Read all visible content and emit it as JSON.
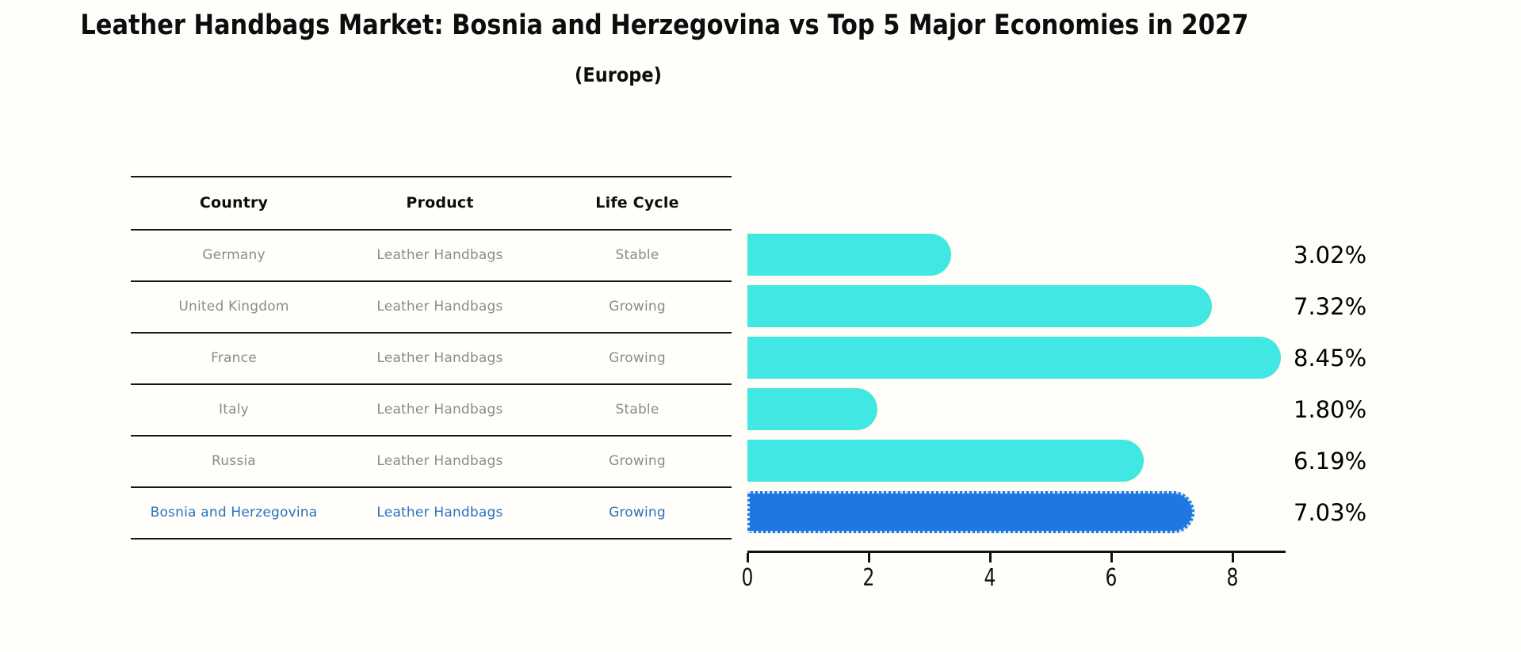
{
  "header": {
    "title": "Leather Handbags Market: Bosnia and Herzegovina vs Top 5 Major Economies in 2027",
    "subtitle": "(Europe)"
  },
  "table": {
    "columns": [
      "Country",
      "Product",
      "Life Cycle"
    ],
    "rows": [
      {
        "country": "Germany",
        "product": "Leather Handbags",
        "life_cycle": "Stable",
        "highlight": false
      },
      {
        "country": "United Kingdom",
        "product": "Leather Handbags",
        "life_cycle": "Growing",
        "highlight": false
      },
      {
        "country": "France",
        "product": "Leather Handbags",
        "life_cycle": "Growing",
        "highlight": false
      },
      {
        "country": "Italy",
        "product": "Leather Handbags",
        "life_cycle": "Stable",
        "highlight": false
      },
      {
        "country": "Russia",
        "product": "Leather Handbags",
        "life_cycle": "Growing",
        "highlight": false
      },
      {
        "country": "Bosnia and Herzegovina",
        "product": "Leather Handbags",
        "life_cycle": "Growing",
        "highlight": true
      }
    ]
  },
  "chart_data": {
    "type": "bar",
    "orientation": "horizontal",
    "title": "Leather Handbags Market: Bosnia and Herzegovina vs Top 5 Major Economies in 2027 (Europe)",
    "categories": [
      "Germany",
      "United Kingdom",
      "France",
      "Italy",
      "Russia",
      "Bosnia and Herzegovina"
    ],
    "values": [
      3.02,
      7.32,
      8.45,
      1.8,
      6.19,
      7.03
    ],
    "value_labels": [
      "3.02%",
      "7.32%",
      "8.45%",
      "1.80%",
      "6.19%",
      "7.03%"
    ],
    "x_ticks": [
      0,
      2,
      4,
      6,
      8
    ],
    "xlim": [
      0,
      8.86
    ],
    "grid": false,
    "legend": "none",
    "bar_color": "#40e7e3",
    "highlight_index": 5,
    "highlight_bar_color": "#1e78e0",
    "highlight_text_color": "#2a72c0",
    "axis_color": "#111111"
  },
  "layout_numbers": {}
}
